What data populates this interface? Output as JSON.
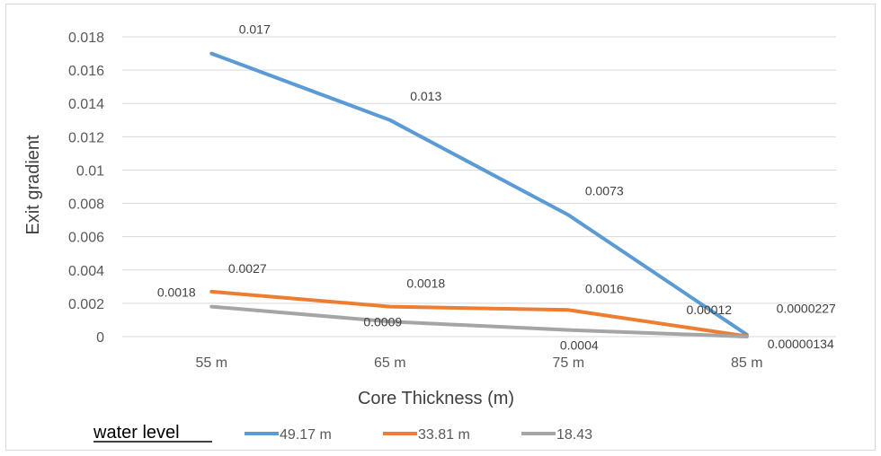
{
  "chart_data": {
    "type": "line",
    "categories": [
      "55 m",
      "65 m",
      "75 m",
      "85 m"
    ],
    "xlabel": "Core Thickness (m)",
    "ylabel": "Exit gradient",
    "ylim": [
      0,
      0.018
    ],
    "yticks": [
      "0",
      "0.002",
      "0.004",
      "0.006",
      "0.008",
      "0.01",
      "0.012",
      "0.014",
      "0.016",
      "0.018"
    ],
    "grid": "horizontal",
    "legend_position": "bottom",
    "legend_title": "water level",
    "series": [
      {
        "name": "49.17 m",
        "color": "#5b9bd5",
        "values": [
          0.017,
          0.013,
          0.0073,
          0.00012
        ],
        "labels": [
          "0.017",
          "0.013",
          "0.0073",
          "0.00012"
        ]
      },
      {
        "name": "33.81 m",
        "color": "#ed7d31",
        "values": [
          0.0027,
          0.0018,
          0.0016,
          2.27e-05
        ],
        "labels": [
          "0.0027",
          "0.0018",
          "0.0016",
          "0.0000227"
        ]
      },
      {
        "name": "18.43",
        "color": "#a5a5a5",
        "values": [
          0.0018,
          0.0009,
          0.0004,
          1.34e-06
        ],
        "labels": [
          "0.0018",
          "0.0009",
          "0.0004",
          "0.00000134"
        ]
      }
    ]
  }
}
